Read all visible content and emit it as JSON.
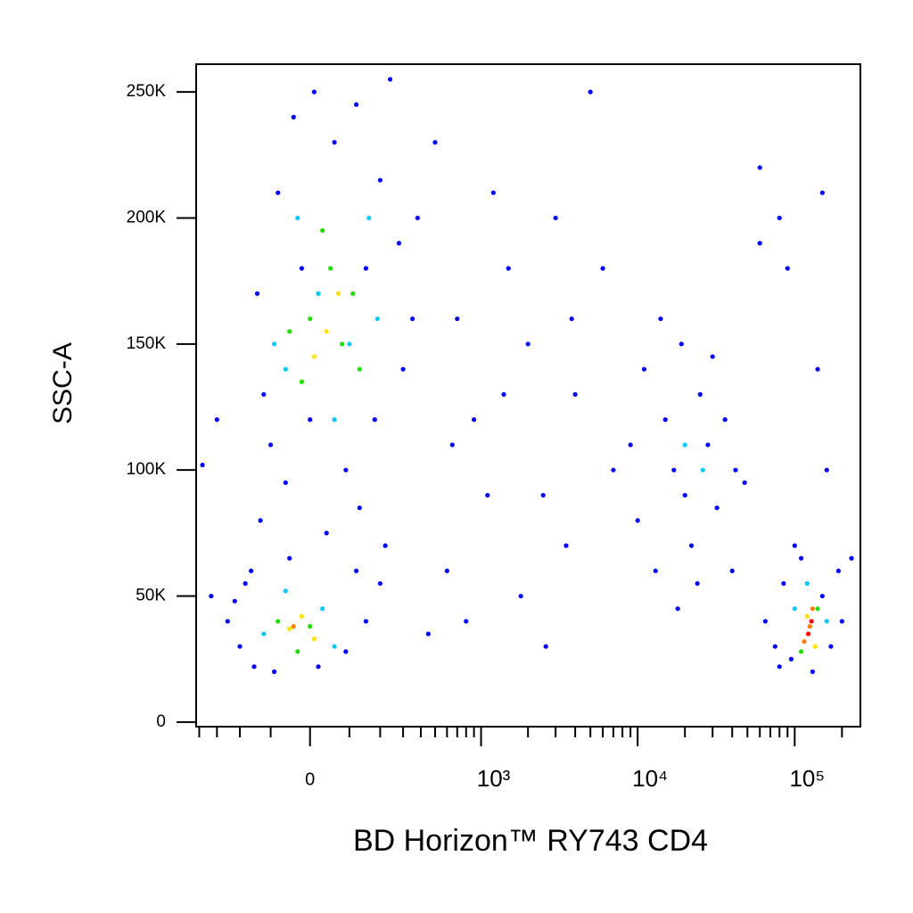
{
  "chart_data": {
    "type": "scatter",
    "x_label": "BD Horizon™ RY743 CD4",
    "y_label": "SSC-A",
    "xscale": "biexponential",
    "xlim": [
      -420,
      262000
    ],
    "ylim": [
      -1800,
      261000
    ],
    "xticks": [
      0,
      {
        "value": 1000,
        "label": "10³"
      },
      {
        "value": 10000,
        "label": "10⁴"
      },
      {
        "value": 100000,
        "label": "10⁵"
      }
    ],
    "xminorticks": [
      -400,
      -300,
      -200,
      -100,
      100,
      200,
      300,
      400,
      500,
      600,
      700,
      800,
      900,
      2000,
      3000,
      4000,
      5000,
      6000,
      7000,
      8000,
      9000,
      20000,
      30000,
      40000,
      50000,
      60000,
      70000,
      80000,
      90000,
      200000
    ],
    "yticks": [
      0,
      {
        "value": 50000,
        "label": "50K"
      },
      {
        "value": 100000,
        "label": "100K"
      },
      {
        "value": 150000,
        "label": "150K"
      },
      {
        "value": 200000,
        "label": "200K"
      },
      {
        "value": 250000,
        "label": "250K"
      }
    ],
    "series": [
      {
        "color": "#0000ff",
        "x": [
          -120,
          -80,
          -40,
          10,
          60,
          120,
          200,
          280,
          350,
          -140,
          -100,
          -60,
          0,
          90,
          180,
          300,
          380,
          240,
          -20,
          150,
          -130,
          -50,
          40,
          130,
          220,
          -160,
          -250,
          -200,
          -180,
          -150,
          -90,
          20,
          90,
          150,
          200,
          120,
          -220,
          -380,
          -330,
          -300,
          500,
          700,
          900,
          1200,
          1500,
          2000,
          2500,
          3000,
          4000,
          5000,
          600,
          800,
          1100,
          1800,
          2600,
          3500,
          450,
          650,
          1400,
          6000,
          7000,
          3800,
          9000,
          10000,
          11000,
          13000,
          15000,
          17000,
          19000,
          20000,
          22000,
          25000,
          28000,
          32000,
          36000,
          42000,
          48000,
          14000,
          24000,
          30000,
          18000,
          40000,
          60000,
          80000,
          150000,
          140000,
          160000,
          60000,
          90000,
          65000,
          75000,
          85000,
          95000,
          110000,
          130000,
          150000,
          170000,
          200000,
          190000,
          100000,
          230000,
          80000
        ],
        "values": [
          130000,
          210000,
          240000,
          250000,
          230000,
          245000,
          215000,
          190000,
          160000,
          170000,
          110000,
          95000,
          120000,
          100000,
          120000,
          140000,
          200000,
          255000,
          180000,
          180000,
          80000,
          65000,
          75000,
          85000,
          70000,
          60000,
          40000,
          30000,
          55000,
          22000,
          20000,
          22000,
          28000,
          40000,
          55000,
          60000,
          48000,
          102000,
          50000,
          120000,
          230000,
          160000,
          120000,
          210000,
          180000,
          150000,
          90000,
          200000,
          130000,
          250000,
          60000,
          40000,
          90000,
          50000,
          30000,
          70000,
          35000,
          110000,
          130000,
          180000,
          100000,
          160000,
          110000,
          80000,
          140000,
          60000,
          120000,
          100000,
          150000,
          90000,
          70000,
          130000,
          110000,
          85000,
          120000,
          100000,
          95000,
          160000,
          55000,
          145000,
          45000,
          60000,
          220000,
          200000,
          210000,
          140000,
          100000,
          190000,
          180000,
          40000,
          30000,
          55000,
          25000,
          65000,
          20000,
          50000,
          30000,
          40000,
          60000,
          70000,
          65000,
          22000
        ]
      },
      {
        "color": "#00c8ff",
        "x": [
          -60,
          20,
          100,
          160,
          60,
          -30,
          190,
          -90,
          -120,
          30,
          -60,
          60,
          20000,
          26000,
          100000,
          160000,
          120000
        ],
        "values": [
          140000,
          170000,
          150000,
          200000,
          120000,
          200000,
          160000,
          150000,
          35000,
          45000,
          52000,
          30000,
          110000,
          100000,
          45000,
          40000,
          55000
        ]
      },
      {
        "color": "#22dd00",
        "x": [
          0,
          50,
          110,
          -20,
          80,
          30,
          130,
          -50,
          -80,
          0,
          -30,
          110000,
          140000
        ],
        "values": [
          160000,
          180000,
          170000,
          135000,
          150000,
          195000,
          140000,
          155000,
          40000,
          38000,
          28000,
          28000,
          45000
        ]
      },
      {
        "color": "#ffe000",
        "x": [
          40,
          70,
          10,
          -50,
          -20,
          10,
          120000,
          135000
        ],
        "values": [
          155000,
          170000,
          145000,
          37000,
          42000,
          33000,
          42000,
          30000
        ]
      },
      {
        "color": "#ff8000",
        "x": [
          -40,
          125000,
          115000,
          130000
        ],
        "values": [
          38000,
          38000,
          32000,
          45000
        ]
      },
      {
        "color": "#ff0000",
        "x": [
          122000,
          128000
        ],
        "values": [
          35000,
          40000
        ]
      }
    ]
  }
}
